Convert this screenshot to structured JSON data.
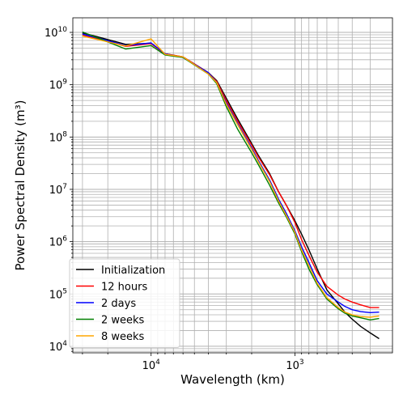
{
  "chart_data": {
    "type": "line",
    "title": "",
    "xlabel": "Wavelength (km)",
    "ylabel": "Power Spectral Density (m³)",
    "x_scale": "log",
    "x_inverted": true,
    "y_scale": "log",
    "xlim": [
      35000,
      210
    ],
    "ylim": [
      7500,
      19000000000
    ],
    "grid": true,
    "grid_minor": true,
    "legend_position": "lower-left",
    "x_ticks": [
      {
        "value": 10000,
        "base": "10",
        "exp": "4"
      },
      {
        "value": 1000,
        "base": "10",
        "exp": "3"
      }
    ],
    "y_ticks": [
      {
        "value": 10000,
        "base": "10",
        "exp": "4"
      },
      {
        "value": 100000,
        "base": "10",
        "exp": "5"
      },
      {
        "value": 1000000,
        "base": "10",
        "exp": "6"
      },
      {
        "value": 10000000,
        "base": "10",
        "exp": "7"
      },
      {
        "value": 100000000,
        "base": "10",
        "exp": "8"
      },
      {
        "value": 1000000000,
        "base": "10",
        "exp": "9"
      },
      {
        "value": 10000000000,
        "base": "10",
        "exp": "10"
      }
    ],
    "series": [
      {
        "name": "Initialization",
        "color": "#000000",
        "points": [
          [
            30000,
            9800000000
          ],
          [
            15000,
            5900000000
          ],
          [
            10000,
            6200000000
          ],
          [
            8000,
            3900000000
          ],
          [
            6000,
            3400000000
          ],
          [
            4000,
            1700000000
          ],
          [
            3500,
            1200000000
          ],
          [
            3000,
            550000000
          ],
          [
            2500,
            220000000
          ],
          [
            2000,
            75000000
          ],
          [
            1800,
            45000000
          ],
          [
            1500,
            20000000
          ],
          [
            1300,
            9000000
          ],
          [
            1150,
            5000000
          ],
          [
            1000,
            2500000
          ],
          [
            900,
            1400000
          ],
          [
            800,
            700000
          ],
          [
            700,
            300000
          ],
          [
            600,
            120000
          ],
          [
            500,
            65000
          ],
          [
            450,
            45000
          ],
          [
            400,
            33000
          ],
          [
            350,
            24000
          ],
          [
            300,
            18000
          ],
          [
            260,
            14000
          ]
        ]
      },
      {
        "name": "12 hours",
        "color": "#ff0000",
        "points": [
          [
            30000,
            9000000000
          ],
          [
            15000,
            5400000000
          ],
          [
            10000,
            6100000000
          ],
          [
            8000,
            3900000000
          ],
          [
            6000,
            3400000000
          ],
          [
            4000,
            1700000000
          ],
          [
            3500,
            1150000000
          ],
          [
            3000,
            500000000
          ],
          [
            2500,
            200000000
          ],
          [
            2000,
            70000000
          ],
          [
            1800,
            42000000
          ],
          [
            1500,
            19000000
          ],
          [
            1300,
            9000000
          ],
          [
            1150,
            5000000
          ],
          [
            1000,
            2300000
          ],
          [
            900,
            1100000
          ],
          [
            800,
            550000
          ],
          [
            700,
            260000
          ],
          [
            600,
            140000
          ],
          [
            500,
            95000
          ],
          [
            450,
            80000
          ],
          [
            400,
            70000
          ],
          [
            350,
            62000
          ],
          [
            300,
            55000
          ],
          [
            260,
            55000
          ]
        ]
      },
      {
        "name": "2 days",
        "color": "#0000ff",
        "points": [
          [
            30000,
            9300000000
          ],
          [
            15000,
            5600000000
          ],
          [
            10000,
            6300000000
          ],
          [
            8000,
            3900000000
          ],
          [
            6000,
            3300000000
          ],
          [
            4000,
            1700000000
          ],
          [
            3500,
            1100000000
          ],
          [
            3000,
            450000000
          ],
          [
            2500,
            180000000
          ],
          [
            2000,
            62000000
          ],
          [
            1800,
            36000000
          ],
          [
            1500,
            15000000
          ],
          [
            1300,
            6500000
          ],
          [
            1150,
            3500000
          ],
          [
            1000,
            1600000
          ],
          [
            900,
            800000
          ],
          [
            800,
            400000
          ],
          [
            700,
            180000
          ],
          [
            600,
            100000
          ],
          [
            500,
            70000
          ],
          [
            450,
            58000
          ],
          [
            400,
            50000
          ],
          [
            350,
            46000
          ],
          [
            300,
            44000
          ],
          [
            260,
            45000
          ]
        ]
      },
      {
        "name": "2 weeks",
        "color": "#008000",
        "points": [
          [
            30000,
            10200000000
          ],
          [
            15000,
            4800000000
          ],
          [
            10000,
            5600000000
          ],
          [
            8000,
            3700000000
          ],
          [
            6000,
            3300000000
          ],
          [
            4000,
            1600000000
          ],
          [
            3500,
            1050000000
          ],
          [
            3000,
            380000000
          ],
          [
            2500,
            140000000
          ],
          [
            2000,
            50000000
          ],
          [
            1800,
            30000000
          ],
          [
            1500,
            12000000
          ],
          [
            1300,
            5500000
          ],
          [
            1150,
            3000000
          ],
          [
            1000,
            1400000
          ],
          [
            900,
            650000
          ],
          [
            800,
            300000
          ],
          [
            700,
            150000
          ],
          [
            600,
            80000
          ],
          [
            500,
            52000
          ],
          [
            450,
            43000
          ],
          [
            400,
            38000
          ],
          [
            350,
            35000
          ],
          [
            300,
            32000
          ],
          [
            260,
            34000
          ]
        ]
      },
      {
        "name": "8 weeks",
        "color": "#ffa500",
        "points": [
          [
            30000,
            8500000000
          ],
          [
            15000,
            5500000000
          ],
          [
            10000,
            7500000000
          ],
          [
            8000,
            3800000000
          ],
          [
            6000,
            3400000000
          ],
          [
            4000,
            1600000000
          ],
          [
            3500,
            1100000000
          ],
          [
            3000,
            420000000
          ],
          [
            2500,
            170000000
          ],
          [
            2000,
            58000000
          ],
          [
            1800,
            34000000
          ],
          [
            1500,
            14000000
          ],
          [
            1300,
            6000000
          ],
          [
            1150,
            3200000
          ],
          [
            1000,
            1500000
          ],
          [
            900,
            700000
          ],
          [
            800,
            350000
          ],
          [
            700,
            160000
          ],
          [
            600,
            85000
          ],
          [
            500,
            55000
          ],
          [
            450,
            45000
          ],
          [
            400,
            40000
          ],
          [
            350,
            37000
          ],
          [
            300,
            36000
          ],
          [
            260,
            38000
          ]
        ]
      }
    ]
  }
}
